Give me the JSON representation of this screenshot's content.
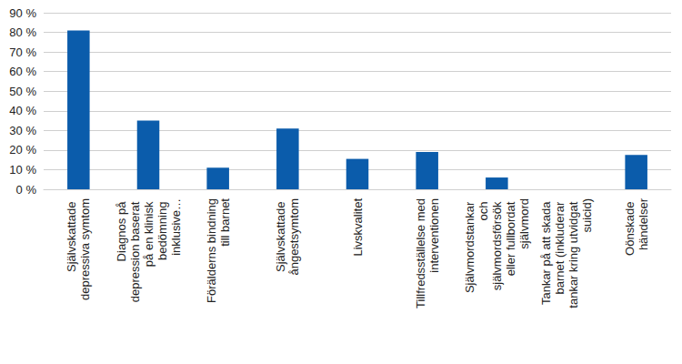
{
  "chart_data": {
    "type": "bar",
    "categories": [
      "Självskattade depressiva symtom",
      "Diagnos på depression baserat på en klinisk bedömning inklusive…",
      "Förälderns bindning till barnet",
      "Självskattade ångestsymtom",
      "Livskvalitet",
      "Tillfredsställelse med interventionen",
      "Självmordstankar och självmordsförsök eller fullbordat självmord",
      "Tankar på att skada barnet (inkluderar tankar kring utvidgat suicid)",
      "Oönskade händelser"
    ],
    "values": [
      81,
      35,
      11,
      31,
      15.5,
      19,
      6,
      0,
      17.5
    ],
    "color": "#0b5cab",
    "ylim": [
      0,
      90
    ],
    "yticks": [
      {
        "value": 0,
        "label": "0 %"
      },
      {
        "value": 10,
        "label": "10 %"
      },
      {
        "value": 20,
        "label": "20 %"
      },
      {
        "value": 30,
        "label": "30 %"
      },
      {
        "value": 40,
        "label": "40 %"
      },
      {
        "value": 50,
        "label": "50 %"
      },
      {
        "value": 60,
        "label": "60 %"
      },
      {
        "value": 70,
        "label": "70 %"
      },
      {
        "value": 80,
        "label": "80 %"
      },
      {
        "value": 90,
        "label": "90 %"
      }
    ],
    "grid": true
  }
}
